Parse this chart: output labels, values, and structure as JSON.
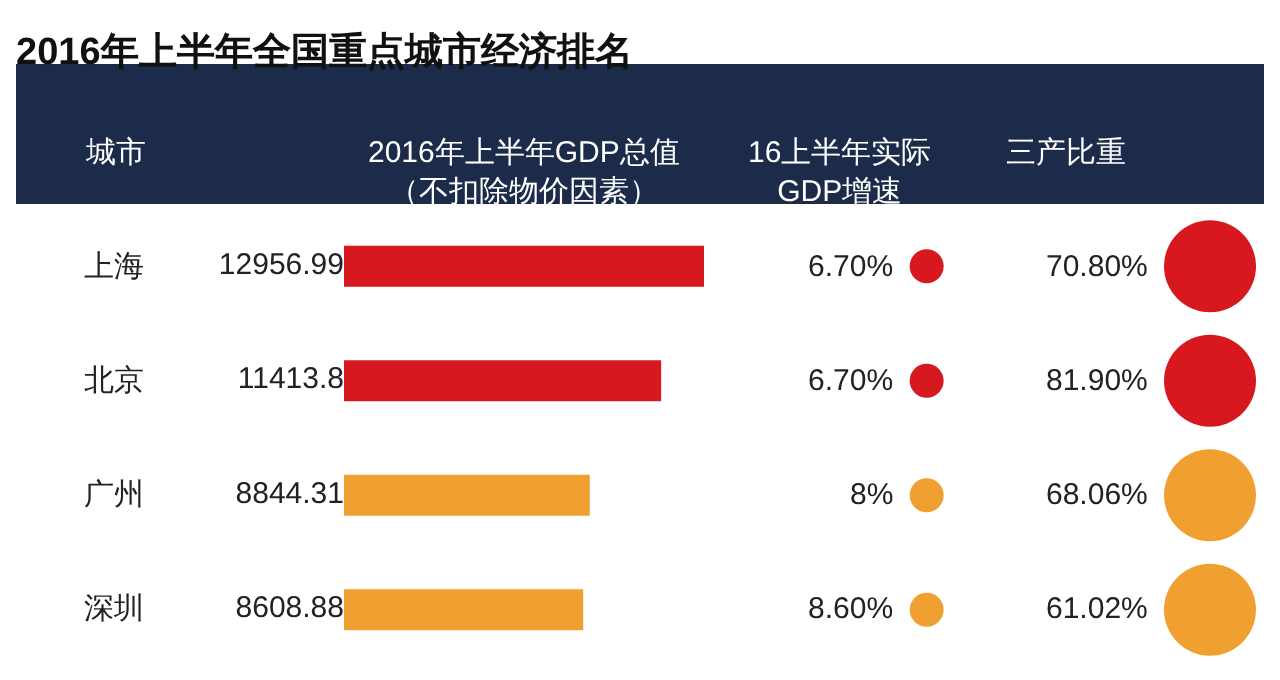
{
  "chart_data": [
    {
      "type": "bar",
      "orientation": "horizontal",
      "title": "2016年上半年全国重点城市经济排名",
      "ylabel": "城市",
      "xlabel": "2016年上半年GDP总值（不扣除物价因素）",
      "categories": [
        "上海",
        "北京",
        "广州",
        "深圳"
      ],
      "values": [
        12956.99,
        11413.8,
        8844.31,
        8608.88
      ],
      "colors": [
        "#d7191f",
        "#d7191f",
        "#f0a030",
        "#f0a030"
      ],
      "data_labels": true
    },
    {
      "type": "other",
      "xlabel": "16上半年实际GDP增速",
      "value_labels": [
        "6.70%",
        "6.70%",
        "8%",
        "8.60%"
      ],
      "colors": [
        "#d7191f",
        "#d7191f",
        "#f0a030",
        "#f0a030"
      ]
    },
    {
      "type": "other",
      "xlabel": "三产比重",
      "value_labels": [
        "70.80%",
        "81.90%",
        "68.06%",
        "61.02%"
      ],
      "colors": [
        "#d7191f",
        "#d7191f",
        "#f0a030",
        "#f0a030"
      ]
    }
  ]
}
